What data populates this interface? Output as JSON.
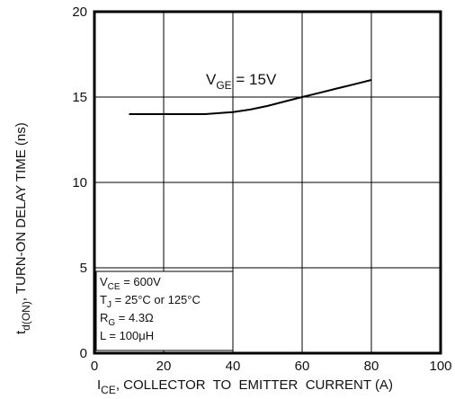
{
  "chart_data": {
    "type": "line",
    "x_ticks": [
      0,
      20,
      40,
      60,
      80,
      100
    ],
    "y_ticks": [
      0,
      5,
      10,
      15,
      20
    ],
    "xlim": [
      0,
      100
    ],
    "ylim": [
      0,
      20
    ],
    "grid": true,
    "xlabel": {
      "main": "I",
      "sub": "CE",
      "rest": ", COLLECTOR  TO  EMITTER  CURRENT (A)"
    },
    "ylabel": {
      "main": "t",
      "sub": "d(ON)",
      "rest": ", TURN-ON DELAY TIME (ns)"
    },
    "series": [
      {
        "name": "V_GE = 15V",
        "x": [
          10,
          20,
          32,
          40,
          45,
          50,
          55,
          60,
          65,
          70,
          75,
          80
        ],
        "y": [
          14.0,
          14.0,
          14.0,
          14.12,
          14.27,
          14.48,
          14.74,
          15.0,
          15.25,
          15.5,
          15.75,
          16.0
        ]
      }
    ],
    "annotation": {
      "main": "V",
      "sub": "GE",
      "rest": " = 15V"
    },
    "conditions": [
      {
        "main": "V",
        "sub": "CE",
        "rest": " = 600V"
      },
      {
        "main": "T",
        "sub": "J",
        "rest": " = 25°C or 125°C"
      },
      {
        "main": "R",
        "sub": "G",
        "rest": " = 4.3Ω"
      },
      {
        "main": "L",
        "sub": "",
        "rest": " = 100μH"
      }
    ]
  }
}
